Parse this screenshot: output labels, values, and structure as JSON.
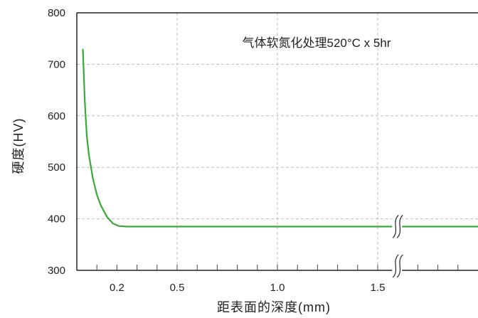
{
  "chart_data": {
    "type": "line",
    "title": "",
    "annotation": "气体软氮化处理520°C x 5hr",
    "xlabel": "距表面的深度(mm)",
    "ylabel": "硬度(HV)",
    "xlim": [
      0.0,
      2.0
    ],
    "ylim": [
      300,
      800
    ],
    "x_ticks": [
      0.2,
      0.5,
      1.0,
      1.5
    ],
    "x_tick_labels": [
      "0.2",
      "0.5",
      "1.0",
      "1.5"
    ],
    "y_ticks": [
      300,
      400,
      500,
      600,
      700,
      800
    ],
    "y_tick_labels": [
      "300",
      "400",
      "500",
      "600",
      "700",
      "800"
    ],
    "x_grid": [
      0.5,
      1.0,
      1.5
    ],
    "y_grid": [
      400,
      500,
      600,
      700
    ],
    "axis_break_at_x": 1.6,
    "grid": true,
    "legend": "none",
    "series": [
      {
        "color": "#3aa83a",
        "x": [
          0.03,
          0.04,
          0.05,
          0.06,
          0.08,
          0.1,
          0.12,
          0.15,
          0.18,
          0.21,
          0.25,
          0.3,
          0.5,
          1.0,
          1.5,
          2.0
        ],
        "y": [
          730,
          625,
          560,
          525,
          478,
          447,
          426,
          404,
          391,
          386,
          385,
          385,
          385,
          385,
          385,
          385
        ]
      }
    ]
  }
}
